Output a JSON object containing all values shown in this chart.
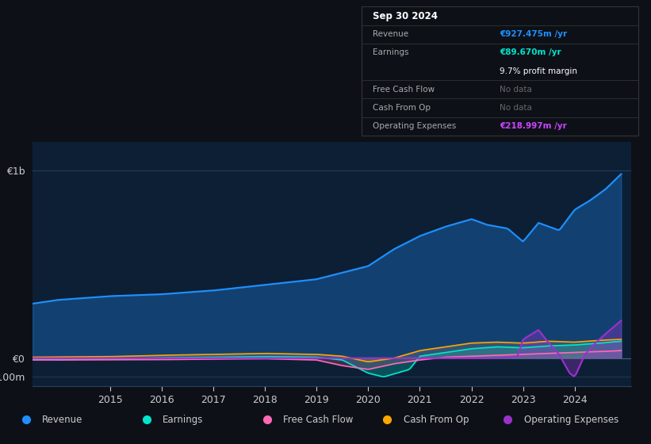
{
  "bg_color": "#0d1117",
  "chart_bg": "#0d1f35",
  "grid_color": "#1e3a5f",
  "text_color": "#cccccc",
  "ylim": [
    -150000000,
    1150000000
  ],
  "legend_items": [
    {
      "label": "Revenue",
      "color": "#1e90ff"
    },
    {
      "label": "Earnings",
      "color": "#00e5cc"
    },
    {
      "label": "Free Cash Flow",
      "color": "#ff69b4"
    },
    {
      "label": "Cash From Op",
      "color": "#ffa500"
    },
    {
      "label": "Operating Expenses",
      "color": "#9932cc"
    }
  ],
  "revenue_color": "#1e90ff",
  "earnings_color": "#00e5cc",
  "fcf_color": "#ff69b4",
  "cashfromop_color": "#ffa500",
  "opex_color": "#9932cc",
  "info_rows": [
    {
      "label": "Sep 30 2024",
      "value": "",
      "value_color": "#ffffff",
      "is_title": true
    },
    {
      "label": "Revenue",
      "value": "€927.475m /yr",
      "value_color": "#1e90ff",
      "is_title": false
    },
    {
      "label": "Earnings",
      "value": "€89.670m /yr",
      "value_color": "#00e5cc",
      "is_title": false
    },
    {
      "label": "",
      "value": "9.7% profit margin",
      "value_color": "#ffffff",
      "is_title": false
    },
    {
      "label": "Free Cash Flow",
      "value": "No data",
      "value_color": "#666666",
      "is_title": false
    },
    {
      "label": "Cash From Op",
      "value": "No data",
      "value_color": "#666666",
      "is_title": false
    },
    {
      "label": "Operating Expenses",
      "value": "€218.997m /yr",
      "value_color": "#cc44ff",
      "is_title": false
    }
  ]
}
